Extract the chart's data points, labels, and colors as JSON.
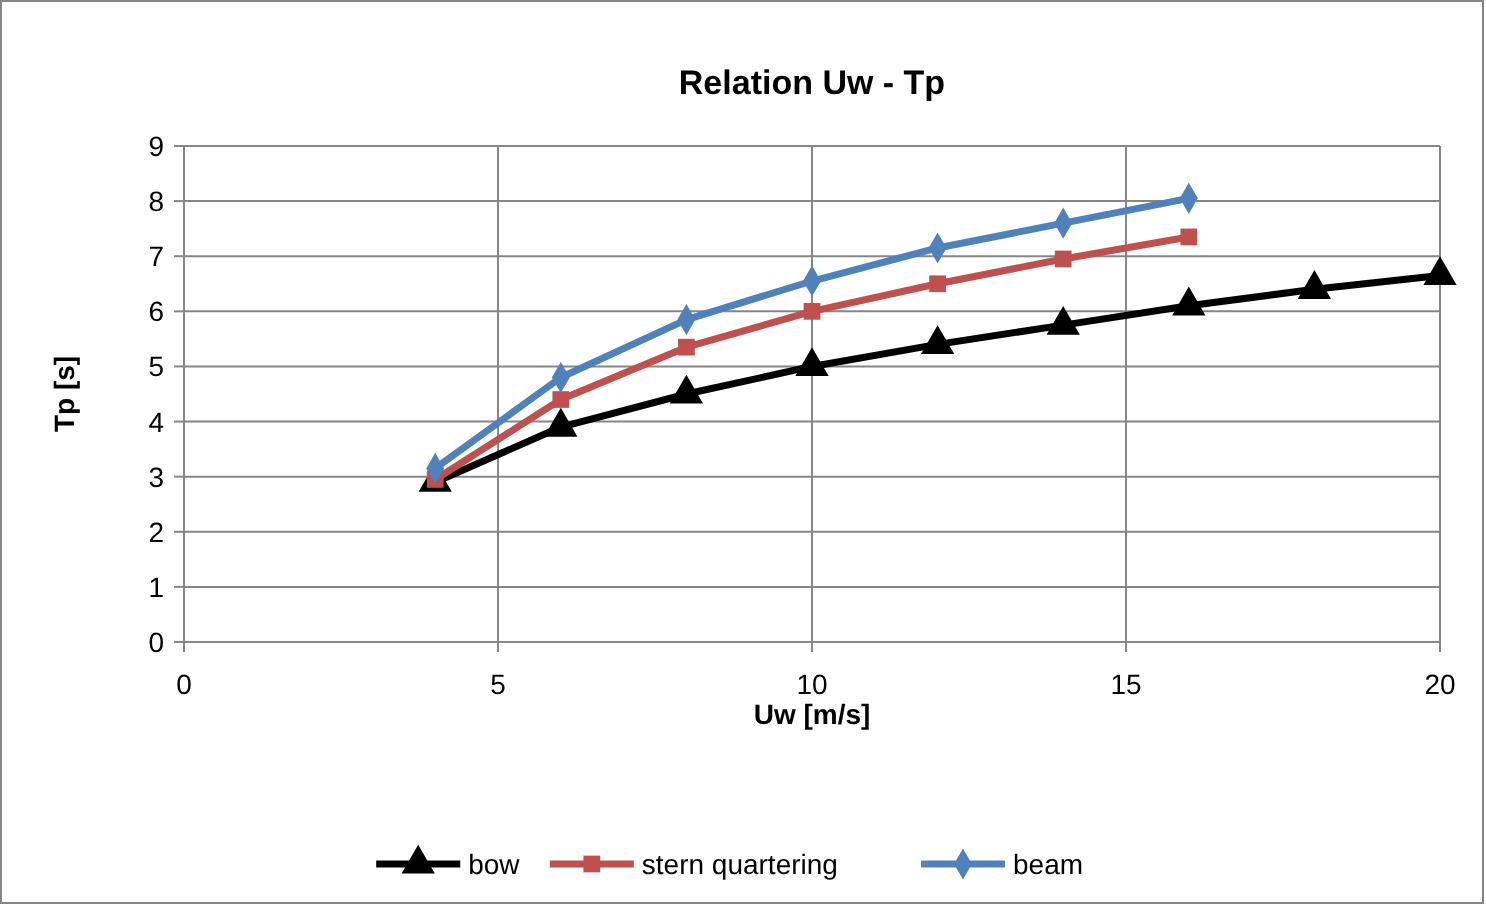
{
  "chart_data": {
    "type": "line",
    "title": "Relation Uw - Tp",
    "xlabel": "Uw [m/s]",
    "ylabel": "Tp [s]",
    "xlim": [
      0,
      20
    ],
    "xticks": [
      0,
      5,
      10,
      15,
      20
    ],
    "ylim": [
      0,
      9
    ],
    "yticks": [
      0,
      1,
      2,
      3,
      4,
      5,
      6,
      7,
      8,
      9
    ],
    "grid": true,
    "legend": "bottom",
    "line_style": "solid",
    "series": [
      {
        "name": "bow",
        "color": "#000000",
        "marker": "triangle",
        "x": [
          4,
          6,
          8,
          10,
          12,
          14,
          16,
          18,
          20
        ],
        "values": [
          2.9,
          3.9,
          4.5,
          5.0,
          5.4,
          5.75,
          6.1,
          6.4,
          6.65
        ]
      },
      {
        "name": "stern quartering",
        "color": "#c0504d",
        "marker": "square",
        "x": [
          4,
          6,
          8,
          10,
          12,
          14,
          16
        ],
        "values": [
          2.95,
          4.4,
          5.35,
          6.0,
          6.5,
          6.95,
          7.35
        ]
      },
      {
        "name": "beam",
        "color": "#4f81bd",
        "marker": "diamond",
        "x": [
          4,
          6,
          8,
          10,
          12,
          14,
          16
        ],
        "values": [
          3.15,
          4.8,
          5.85,
          6.55,
          7.15,
          7.6,
          8.05
        ]
      }
    ]
  }
}
